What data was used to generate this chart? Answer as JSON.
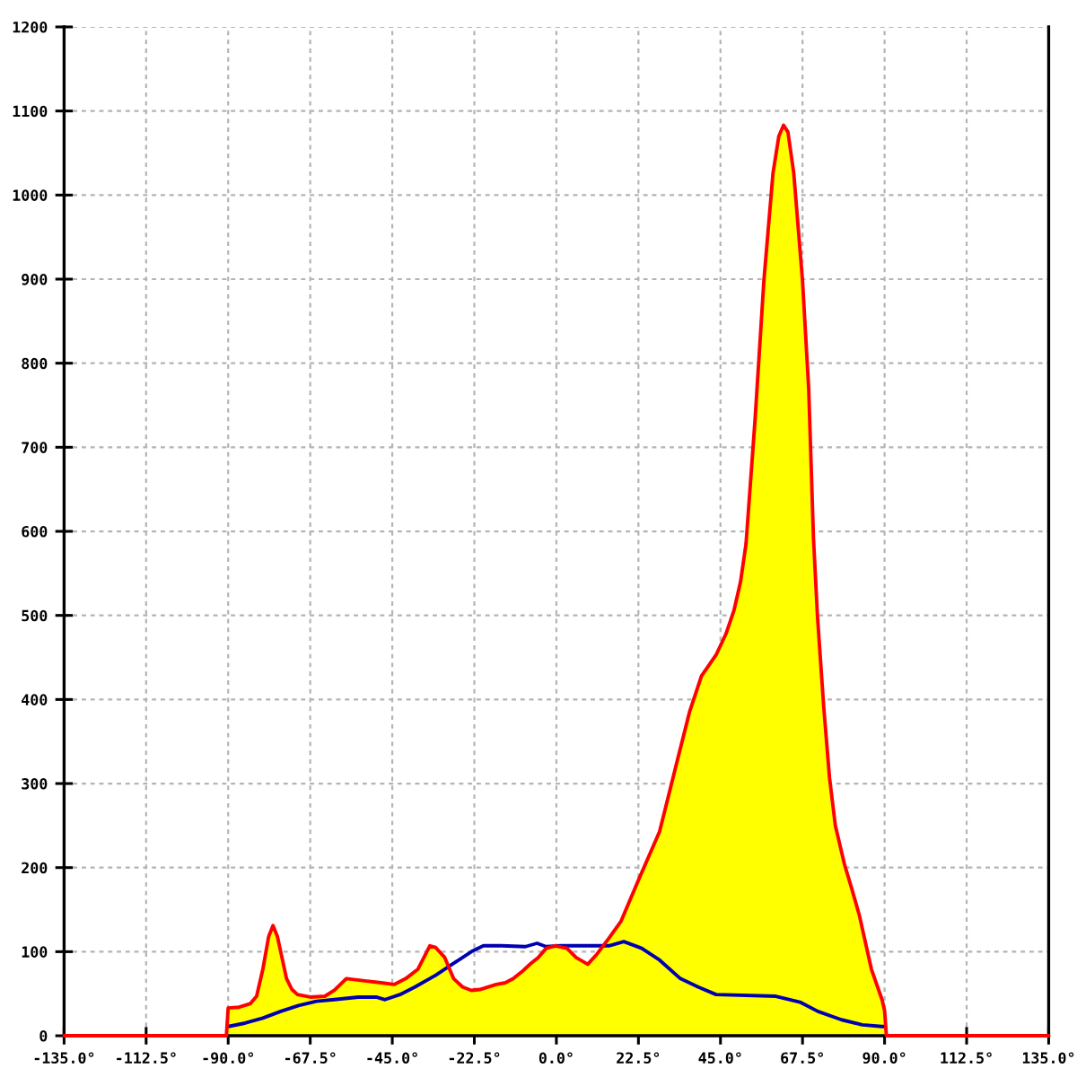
{
  "chart_data": {
    "type": "area",
    "xlim": [
      -135,
      135
    ],
    "xticks": [
      {
        "value": -135,
        "label": "-135.0°"
      },
      {
        "value": -112.5,
        "label": "-112.5°"
      },
      {
        "value": -90,
        "label": "-90.0°"
      },
      {
        "value": -67.5,
        "label": "-67.5°"
      },
      {
        "value": -45,
        "label": "-45.0°"
      },
      {
        "value": -22.5,
        "label": "-22.5°"
      },
      {
        "value": 0,
        "label": "0.0°"
      },
      {
        "value": 22.5,
        "label": "22.5°"
      },
      {
        "value": 45,
        "label": "45.0°"
      },
      {
        "value": 67.5,
        "label": "67.5°"
      },
      {
        "value": 90,
        "label": "90.0°"
      },
      {
        "value": 112.5,
        "label": "112.5°"
      },
      {
        "value": 135,
        "label": "135.0°"
      }
    ],
    "ylim": [
      0,
      1200
    ],
    "yticks": [
      0,
      100,
      200,
      300,
      400,
      500,
      600,
      700,
      800,
      900,
      1000,
      1100,
      1200
    ],
    "grid": true,
    "series": [
      {
        "color": "#ff0000",
        "x": [
          -135,
          -90.5,
          -90,
          -87,
          -84,
          -82.2,
          -80.5,
          -78.9,
          -77.7,
          -76.5,
          -75.6,
          -74,
          -72.5,
          -71,
          -67.5,
          -63.5,
          -60.9,
          -57.6,
          -52,
          -48,
          -44.5,
          -41.3,
          -38,
          -34.7,
          -33.1,
          -30.6,
          -28.2,
          -25.7,
          -23.3,
          -21,
          -16.5,
          -14,
          -11.8,
          -9.5,
          -7,
          -5,
          -2.8,
          -0.3,
          2.9,
          5.4,
          8.6,
          11.1,
          14.4,
          17.7,
          22.6,
          28.3,
          33.2,
          36.5,
          39.8,
          43.8,
          46.5,
          48.7,
          50.5,
          52,
          54.5,
          56.9,
          59.4,
          61,
          62.3,
          63.5,
          65.1,
          67.5,
          69.2,
          70.5,
          71.6,
          73.3,
          74.9,
          76.5,
          79,
          81,
          83.1,
          86.4,
          89.3,
          90,
          90.5,
          135
        ],
        "values": [
          0,
          0,
          33,
          34,
          38,
          47,
          79,
          118,
          131,
          118,
          100,
          68,
          55,
          49,
          46,
          47,
          54,
          68,
          65,
          63,
          61,
          68,
          79,
          107,
          105,
          93,
          68,
          58,
          54,
          55,
          61,
          63,
          68,
          76,
          86,
          93,
          104,
          107,
          104,
          93,
          85,
          97,
          116,
          136,
          186,
          243,
          328,
          385,
          428,
          453,
          478,
          506,
          540,
          585,
          734,
          898,
          1026,
          1070,
          1083,
          1075,
          1026,
          898,
          769,
          592,
          499,
          392,
          307,
          250,
          204,
          175,
          143,
          79,
          43,
          30,
          0,
          0
        ]
      },
      {
        "type": "line",
        "color": "#0000b0",
        "x": [
          -90,
          -85.4,
          -80.5,
          -75.6,
          -70.7,
          -65.8,
          -60.9,
          -54.3,
          -49.4,
          -47,
          -42.9,
          -38.8,
          -33.1,
          -28.2,
          -23.3,
          -20,
          -15.1,
          -8.5,
          -5.3,
          -2.8,
          1.3,
          14.4,
          18.5,
          23.4,
          28.3,
          34,
          38.9,
          43.8,
          60.2,
          66.8,
          71.7,
          78.2,
          83.9,
          89.3,
          90
        ],
        "values": [
          11,
          15,
          21,
          29,
          36,
          41,
          43,
          46,
          46,
          43,
          49,
          58,
          72,
          86,
          100,
          107,
          107,
          106,
          110,
          106,
          107,
          107,
          112,
          104,
          90,
          68,
          58,
          49,
          47,
          40,
          29,
          19,
          13,
          11,
          11
        ]
      }
    ]
  }
}
